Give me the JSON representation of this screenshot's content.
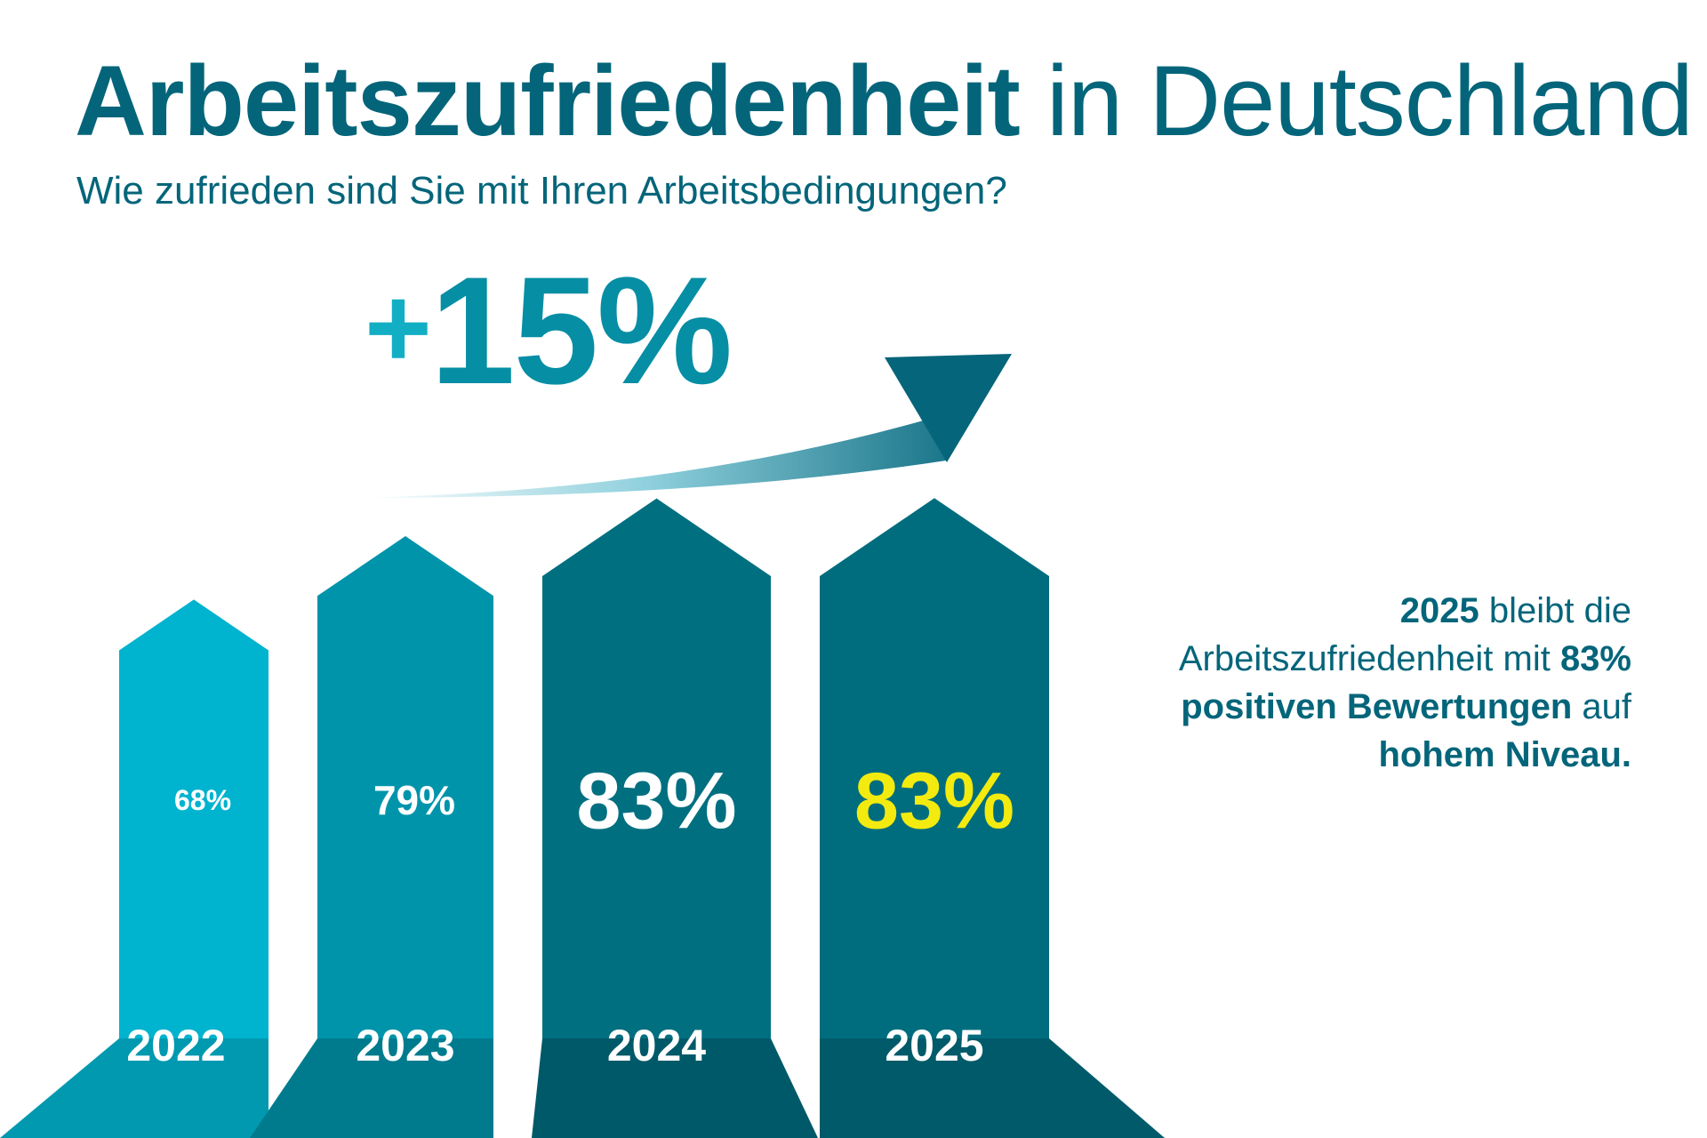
{
  "title": {
    "bold": "Arbeitszufriedenheit",
    "light": "in Deutschland"
  },
  "subtitle": "Wie zufrieden sind Sie mit Ihren Arbeitsbedingungen?",
  "growth": {
    "plus": "+",
    "value": "15%"
  },
  "note": {
    "p1": "2025",
    "p2": " bleibt die Arbeitszufriedenheit mit ",
    "p3": "83% positiven Bewertungen",
    "p4": " auf ",
    "p5": "hohem Niveau."
  },
  "colors": {
    "accent": "#04657a",
    "highlight": "#f3ea0f",
    "bars": [
      "#00b3ce",
      "#0094ab",
      "#006f80",
      "#006d7e"
    ],
    "bases": [
      "#0099b0",
      "#007b8e",
      "#005968",
      "#005a69"
    ]
  },
  "chart_data": {
    "type": "bar",
    "categories": [
      "2022",
      "2023",
      "2024",
      "2025"
    ],
    "values": [
      68,
      79,
      83,
      83
    ],
    "labels": [
      "68%",
      "79%",
      "83%",
      "83%"
    ],
    "unit": "%",
    "highlight_index": 3
  }
}
